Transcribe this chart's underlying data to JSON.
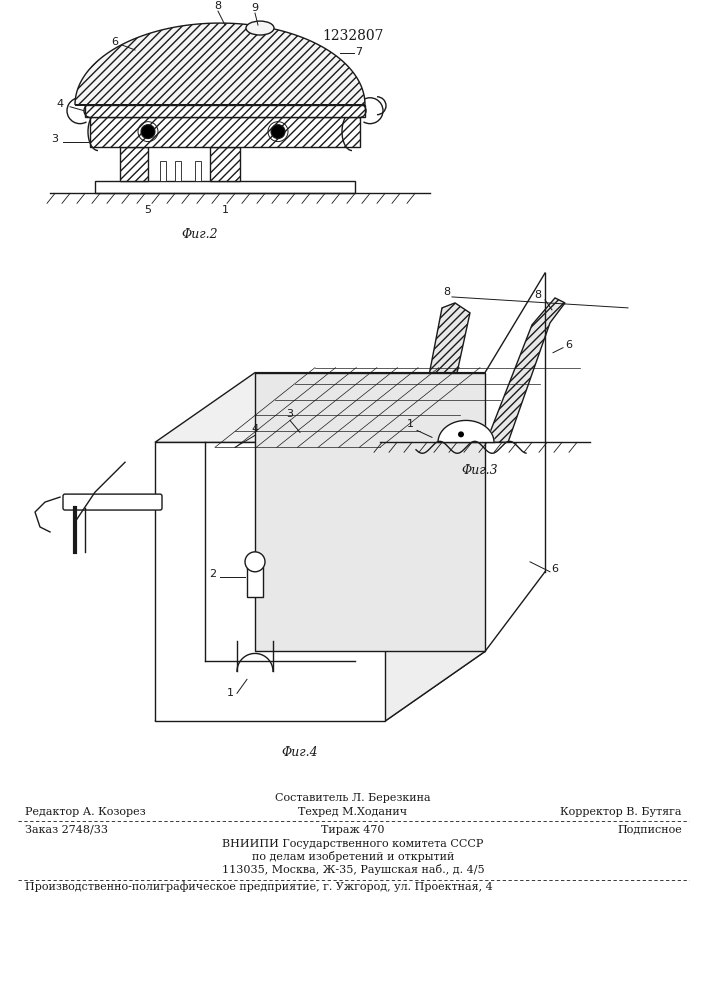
{
  "patent_number": "1232807",
  "fig2_label": "Φиг.2",
  "fig3_label": "Φиг.3",
  "fig4_label": "Φиг.4",
  "footer_above_col2": "Составитель Л. Березкина",
  "footer_line1_col1": "Редактор А. Козорез",
  "footer_line1_col2": "Техред М.Ходанич",
  "footer_line1_col3": "Корректор В. Бутяга",
  "footer_line2_col1": "Заказ 2748/33",
  "footer_line2_col2": "Тираж 470",
  "footer_line2_col3": "Подписное",
  "footer_line3": "ВНИИПИ Государственного комитета СССР",
  "footer_line4": "по делам изобретений и открытий",
  "footer_line5": "113035, Москва, Ж-35, Раушская наб., д. 4/5",
  "footer_bottom": "Производственно-полиграфическое предприятие, г. Ужгород, ул. Проектная, 4",
  "bg_color": "#ffffff",
  "line_color": "#1a1a1a"
}
